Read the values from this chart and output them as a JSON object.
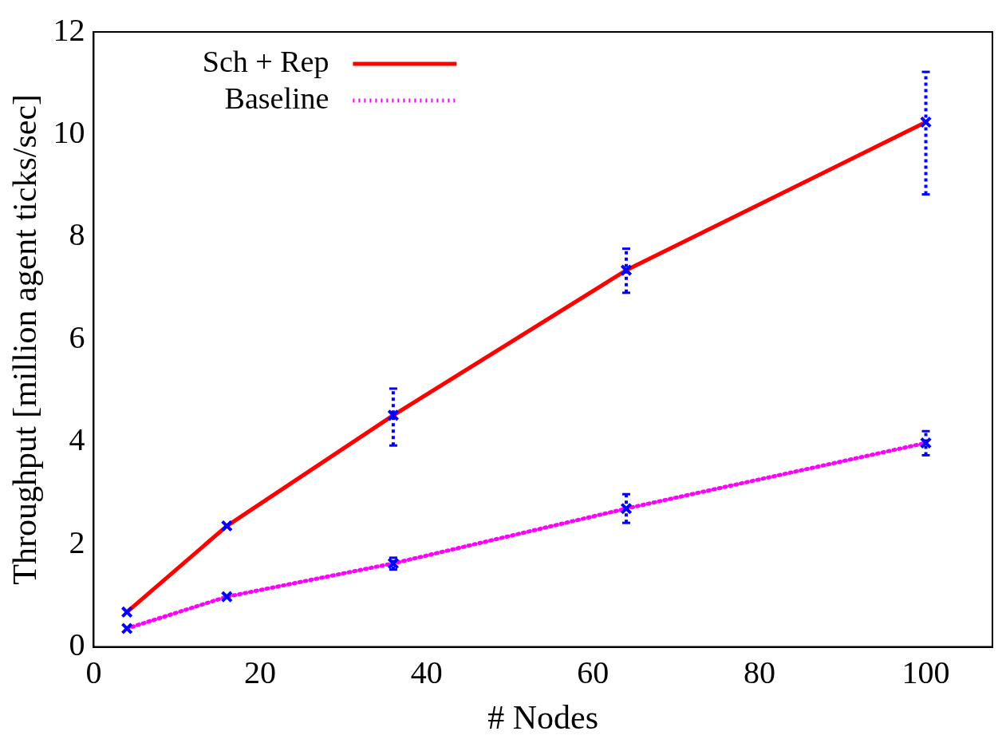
{
  "chart_data": {
    "type": "line",
    "xlabel": "# Nodes",
    "ylabel": "Throughput [million agent ticks/sec]",
    "x": [
      4,
      16,
      36,
      64,
      100
    ],
    "series": [
      {
        "name": "Sch + Rep",
        "color": "#ff0000",
        "line_style": "solid",
        "values": [
          0.68,
          2.36,
          4.52,
          7.35,
          10.24
        ],
        "errors": [
          null,
          null,
          [
            3.93,
            5.04
          ],
          [
            6.91,
            7.77
          ],
          [
            8.83,
            11.22
          ]
        ]
      },
      {
        "name": "Baseline",
        "color": "#ff00ff",
        "line_style": "dotted",
        "values": [
          0.36,
          0.98,
          1.63,
          2.7,
          3.98
        ],
        "errors": [
          null,
          null,
          [
            1.51,
            1.74
          ],
          [
            2.42,
            2.98
          ],
          [
            3.74,
            4.21
          ]
        ]
      }
    ],
    "marker": "cross",
    "legend": "top left",
    "grid": false,
    "xlim": [
      0,
      108
    ],
    "xticks": [
      0,
      20,
      40,
      60,
      80,
      100
    ],
    "ylim": [
      0,
      12
    ],
    "yticks": [
      0,
      2,
      4,
      6,
      8,
      10,
      12
    ]
  }
}
